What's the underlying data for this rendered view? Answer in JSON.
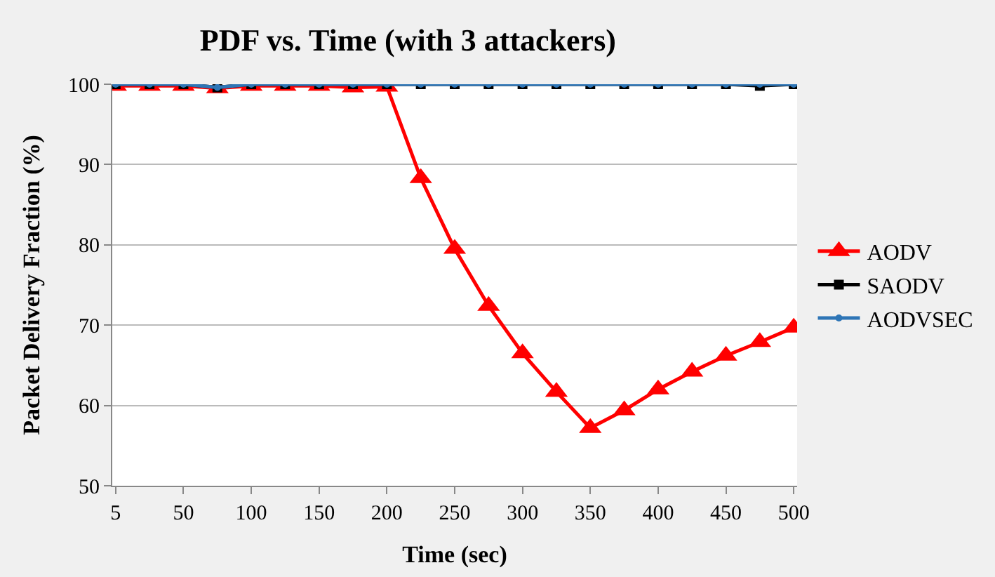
{
  "chart_data": {
    "type": "line",
    "title": "PDF vs. Time (with 3 attackers)",
    "xlabel": "Time (sec)",
    "ylabel": "Packet Delivery Fraction (%)",
    "categories": [
      "5",
      null,
      "50",
      null,
      "100",
      null,
      "150",
      null,
      "200",
      null,
      "250",
      null,
      "300",
      null,
      "350",
      null,
      "400",
      null,
      "450",
      null,
      "500"
    ],
    "series": [
      {
        "name": "AODV",
        "color": "#ff0000",
        "marker": "triangle",
        "values": [
          99.8,
          99.8,
          99.8,
          99.5,
          99.8,
          99.8,
          99.8,
          99.6,
          99.7,
          88.3,
          79.5,
          72.4,
          66.5,
          61.7,
          57.2,
          59.4,
          62.0,
          64.2,
          66.2,
          67.9,
          69.7
        ]
      },
      {
        "name": "SAODV",
        "color": "#000000",
        "marker": "square",
        "values": [
          100,
          100,
          100,
          99.6,
          100,
          100,
          100,
          100,
          100,
          100,
          100,
          100,
          100,
          100,
          100,
          100,
          100,
          100,
          100,
          99.8,
          100
        ]
      },
      {
        "name": "AODVSEC",
        "color": "#2e75b6",
        "marker": "circle",
        "values": [
          100,
          100,
          100,
          99.6,
          100,
          100,
          100,
          100,
          100,
          100,
          100,
          100,
          100,
          100,
          100,
          100,
          100,
          100,
          100,
          100,
          100
        ]
      }
    ],
    "ylim": [
      50,
      100
    ],
    "yticks": [
      50,
      60,
      70,
      80,
      90,
      100
    ],
    "grid": "y",
    "legend": "right"
  }
}
